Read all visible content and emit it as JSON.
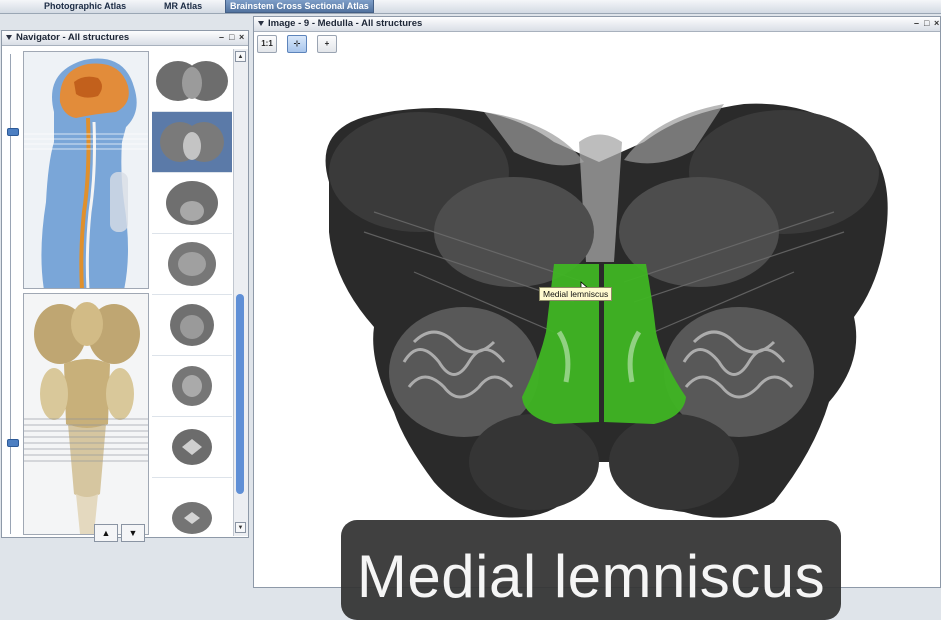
{
  "tabs": [
    {
      "label": "Photographic Atlas"
    },
    {
      "label": "MR Atlas"
    },
    {
      "label": "Brainstem Cross Sectional Atlas"
    }
  ],
  "navigator": {
    "title": "Navigator - All structures",
    "controls": {
      "minimize": "–",
      "maximize": "□",
      "close": "×"
    },
    "up_arrow": "▲",
    "down_arrow": "▼",
    "scroll_up": "▲",
    "scroll_down": "▼"
  },
  "image_panel": {
    "title": "Image - 9 - Medulla - All structures",
    "controls": {
      "minimize": "–",
      "maximize": "□",
      "close": "×"
    },
    "tools": [
      {
        "label": "1:1"
      },
      {
        "label": "⊹"
      },
      {
        "label": "+"
      }
    ],
    "tooltip": "Medial lemniscus",
    "highlight_color": "#3fb523"
  },
  "caption": "Medial lemniscus"
}
